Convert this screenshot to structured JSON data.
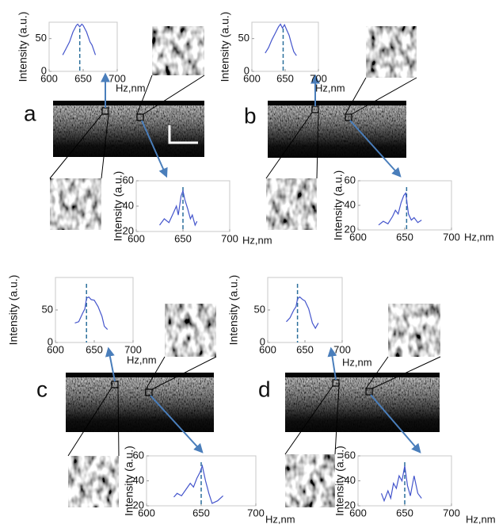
{
  "panel_labels": [
    "a",
    "b",
    "c",
    "d"
  ],
  "chart_data": [
    {
      "type": "line",
      "ylabel": "Intensity (a.u.)",
      "xlabel": "Hz,nm",
      "color": "#4455cc",
      "xlim": [
        600,
        700
      ],
      "xticks": [
        600,
        650,
        700
      ],
      "ylim": [
        0,
        75
      ],
      "yticks": [
        0,
        50
      ],
      "vline": 645,
      "x": [
        620,
        625,
        630,
        635,
        640,
        642,
        645,
        648,
        650,
        655,
        660,
        663,
        668
      ],
      "values": [
        25,
        35,
        45,
        60,
        70,
        72,
        68,
        72,
        70,
        60,
        45,
        40,
        25
      ]
    },
    {
      "type": "line",
      "ylabel": "Intensity (a.u.)",
      "xlabel": "Hz,nm",
      "color": "#4455cc",
      "xlim": [
        600,
        700
      ],
      "xticks": [
        600,
        650,
        700
      ],
      "ylim": [
        20,
        60
      ],
      "yticks": [
        20,
        40,
        60
      ],
      "vline": 650,
      "x": [
        625,
        630,
        635,
        640,
        643,
        645,
        648,
        650,
        652,
        655,
        658,
        660,
        663,
        665
      ],
      "values": [
        25,
        30,
        27,
        35,
        40,
        33,
        48,
        52,
        45,
        38,
        30,
        33,
        25,
        28
      ]
    },
    {
      "type": "line",
      "ylabel": "Intensity (a.u.)",
      "xlabel": "Hz,nm",
      "color": "#4455cc",
      "xlim": [
        600,
        700
      ],
      "xticks": [
        600,
        650,
        700
      ],
      "ylim": [
        0,
        75
      ],
      "yticks": [
        0,
        50
      ],
      "vline": 647,
      "x": [
        620,
        625,
        630,
        635,
        640,
        643,
        646,
        649,
        652,
        656,
        660,
        663,
        667
      ],
      "values": [
        28,
        36,
        48,
        58,
        68,
        72,
        66,
        71,
        64,
        55,
        40,
        30,
        24
      ]
    },
    {
      "type": "line",
      "ylabel": "Intensity (a.u.)",
      "xlabel": "Hz,nm",
      "color": "#4455cc",
      "xlim": [
        600,
        700
      ],
      "xticks": [
        600,
        650,
        700
      ],
      "ylim": [
        20,
        60
      ],
      "yticks": [
        20,
        40,
        60
      ],
      "vline": 652,
      "x": [
        622,
        627,
        632,
        637,
        640,
        643,
        646,
        649,
        651,
        654,
        657,
        660,
        664,
        668
      ],
      "values": [
        24,
        27,
        25,
        31,
        36,
        33,
        42,
        48,
        50,
        33,
        28,
        30,
        26,
        28
      ]
    },
    {
      "type": "line",
      "ylabel": "Intensity (a.u.)",
      "xlabel": "Hz,nm",
      "color": "#4455cc",
      "xlim": [
        600,
        700
      ],
      "xticks": [
        600,
        650,
        700
      ],
      "ylim": [
        0,
        100
      ],
      "yticks": [
        0,
        50
      ],
      "vline": 640,
      "x": [
        625,
        630,
        635,
        638,
        640,
        643,
        646,
        650,
        655,
        660,
        663,
        667
      ],
      "values": [
        30,
        32,
        45,
        52,
        68,
        70,
        66,
        65,
        55,
        40,
        25,
        20
      ]
    },
    {
      "type": "line",
      "ylabel": "Intensity (a.u.)",
      "xlabel": "Hz,nm",
      "color": "#4455cc",
      "xlim": [
        600,
        700
      ],
      "xticks": [
        600,
        650,
        700
      ],
      "ylim": [
        20,
        60
      ],
      "yticks": [
        20,
        40,
        60
      ],
      "vline": 650,
      "x": [
        625,
        628,
        632,
        636,
        640,
        643,
        646,
        649,
        651,
        654,
        657,
        660,
        665,
        670
      ],
      "values": [
        27,
        30,
        28,
        33,
        38,
        35,
        42,
        47,
        52,
        40,
        30,
        22,
        24,
        28
      ]
    },
    {
      "type": "line",
      "ylabel": "Intensity (a.u.)",
      "xlabel": "Hz,nm",
      "color": "#4455cc",
      "xlim": [
        600,
        700
      ],
      "xticks": [
        600,
        650,
        700
      ],
      "ylim": [
        0,
        100
      ],
      "yticks": [
        0,
        50
      ],
      "vline": 640,
      "x": [
        625,
        630,
        635,
        638,
        640,
        643,
        647,
        650,
        655,
        660,
        664,
        668
      ],
      "values": [
        32,
        38,
        50,
        55,
        67,
        70,
        66,
        64,
        52,
        30,
        22,
        30
      ]
    },
    {
      "type": "line",
      "ylabel": "Intensity (a.u.)",
      "xlabel": "Hz,nm",
      "color": "#4455cc",
      "xlim": [
        600,
        700
      ],
      "xticks": [
        600,
        650,
        700
      ],
      "ylim": [
        20,
        60
      ],
      "yticks": [
        20,
        40,
        60
      ],
      "vline": 650,
      "x": [
        625,
        628,
        632,
        635,
        638,
        641,
        644,
        647,
        650,
        653,
        656,
        660,
        664,
        668
      ],
      "values": [
        30,
        24,
        32,
        26,
        38,
        34,
        44,
        40,
        52,
        36,
        28,
        44,
        30,
        26
      ]
    }
  ]
}
